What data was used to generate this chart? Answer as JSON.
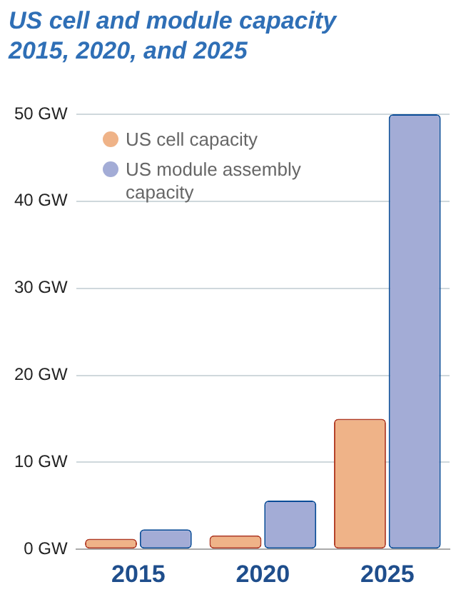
{
  "chart_data": {
    "type": "bar",
    "title": "US cell and module capacity 2015, 2020, and 2025",
    "categories": [
      "2015",
      "2020",
      "2025"
    ],
    "series": [
      {
        "name": "US cell capacity",
        "color": "#efb388",
        "values": [
          1.2,
          1.6,
          15
        ]
      },
      {
        "name": "US module assembly capacity",
        "color": "#a3acd6",
        "values": [
          2.3,
          5.6,
          50
        ]
      }
    ],
    "ylim": [
      0,
      50
    ],
    "yticks": [
      {
        "value": 0,
        "label": "0 GW"
      },
      {
        "value": 10,
        "label": "10 GW"
      },
      {
        "value": 20,
        "label": "20 GW"
      },
      {
        "value": 30,
        "label": "30 GW"
      },
      {
        "value": 40,
        "label": "40 GW"
      },
      {
        "value": 50,
        "label": "50 GW"
      }
    ],
    "grid": "y",
    "legend": "top left"
  }
}
